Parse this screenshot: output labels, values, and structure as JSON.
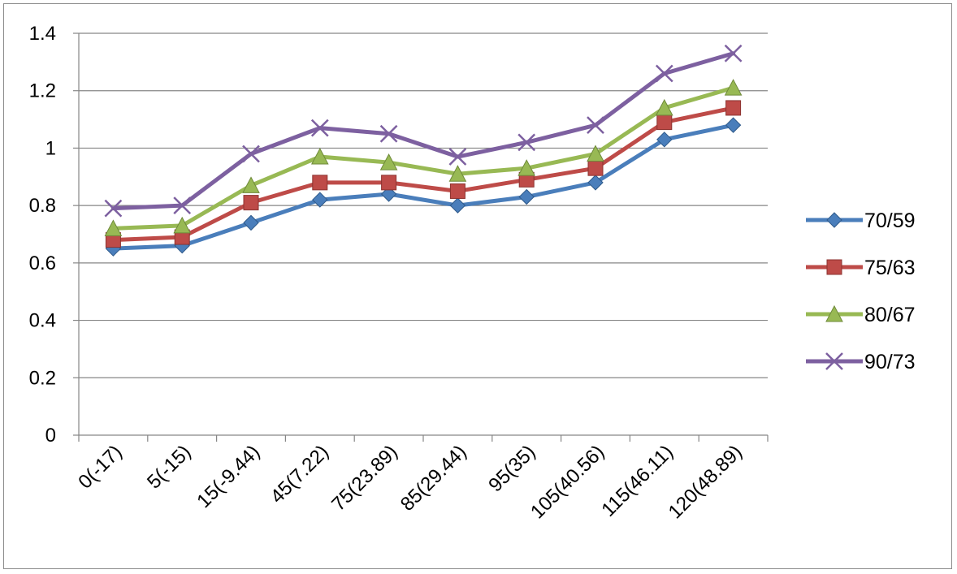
{
  "chart_data": {
    "type": "line",
    "categories": [
      "0(-17)",
      "5(-15)",
      "15(-9.44)",
      "45(7.22)",
      "75(23.89)",
      "85(29.44)",
      "95(35)",
      "105(40.56)",
      "115(46.11)",
      "120(48.89)"
    ],
    "ylim": [
      0,
      1.4
    ],
    "yticks": [
      "0",
      "0.2",
      "0.4",
      "0.6",
      "0.8",
      "1",
      "1.2",
      "1.4"
    ],
    "grid": true,
    "legend_position": "right",
    "series": [
      {
        "name": "70/59",
        "color": "#4a7ebb",
        "marker": "diamond",
        "values": [
          0.65,
          0.66,
          0.74,
          0.82,
          0.84,
          0.8,
          0.83,
          0.88,
          1.03,
          1.08
        ]
      },
      {
        "name": "75/63",
        "color": "#be4b48",
        "marker": "square",
        "values": [
          0.68,
          0.69,
          0.81,
          0.88,
          0.88,
          0.85,
          0.89,
          0.93,
          1.09,
          1.14
        ]
      },
      {
        "name": "80/67",
        "color": "#98b954",
        "marker": "triangle",
        "values": [
          0.72,
          0.73,
          0.87,
          0.97,
          0.95,
          0.91,
          0.93,
          0.98,
          1.14,
          1.21
        ]
      },
      {
        "name": "90/73",
        "color": "#7d60a0",
        "marker": "cross",
        "values": [
          0.79,
          0.8,
          0.98,
          1.07,
          1.05,
          0.97,
          1.02,
          1.08,
          1.26,
          1.33
        ]
      }
    ]
  }
}
